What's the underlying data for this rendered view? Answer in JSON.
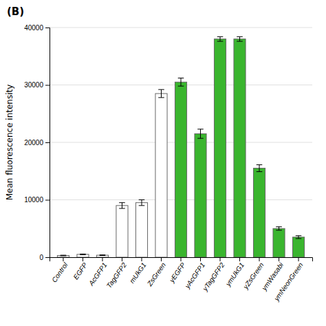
{
  "chart_data": {
    "type": "bar",
    "categories": [
      "Control",
      "EGFP",
      "AcGFP1",
      "TagGFP2",
      "mUkG1",
      "ZsGreen",
      "yEGFP",
      "yAcGFP1",
      "yTagGFP2",
      "ymUkG1",
      "yZsGreen",
      "ymWasabi",
      "ymNeonGreen"
    ],
    "values": [
      300,
      500,
      350,
      9000,
      9500,
      28500,
      30500,
      21500,
      38000,
      38000,
      15500,
      5000,
      3500
    ],
    "errors": [
      50,
      60,
      50,
      500,
      500,
      700,
      700,
      800,
      400,
      400,
      600,
      300,
      250
    ],
    "colors": [
      "white",
      "white",
      "white",
      "white",
      "white",
      "white",
      "#3ab52e",
      "#3ab52e",
      "#3ab52e",
      "#3ab52e",
      "#3ab52e",
      "#3ab52e",
      "#3ab52e"
    ],
    "ylabel": "Mean fluorescence intensity",
    "ylim": [
      0,
      40000
    ],
    "yticks": [
      0,
      10000,
      20000,
      30000,
      40000
    ],
    "grid": true,
    "annotations": [
      "(B)"
    ]
  }
}
